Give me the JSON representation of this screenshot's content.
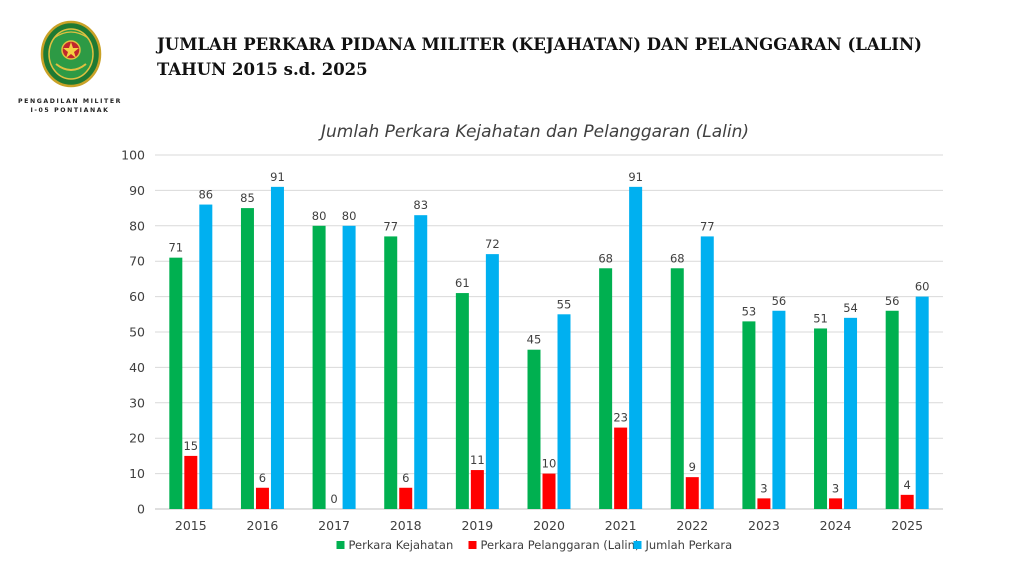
{
  "header": {
    "title_line1": "JUMLAH PERKARA PIDANA MILITER (KEJAHATAN) DAN PELANGGARAN (LALIN)",
    "title_line2": "TAHUN 2015 s.d. 2025",
    "org_line1": "PENGADILAN MILITER",
    "org_line2": "I-05 PONTIANAK"
  },
  "colors": {
    "kejahatan": "#00b050",
    "pelanggaran": "#ff0000",
    "jumlah": "#00b0f0",
    "grid": "#d9d9d9",
    "axis": "#bfbfbf"
  },
  "chart_data": {
    "type": "bar",
    "title": "Jumlah Perkara Kejahatan dan Pelanggaran (Lalin)",
    "categories": [
      "2015",
      "2016",
      "2017",
      "2018",
      "2019",
      "2020",
      "2021",
      "2022",
      "2023",
      "2024",
      "2025"
    ],
    "series": [
      {
        "name": "Perkara Kejahatan",
        "values": [
          71,
          85,
          80,
          77,
          61,
          45,
          68,
          68,
          53,
          51,
          56
        ]
      },
      {
        "name": "Perkara Pelanggaran (Lalin)",
        "values": [
          15,
          6,
          0,
          6,
          11,
          10,
          23,
          9,
          3,
          3,
          4
        ]
      },
      {
        "name": "Jumlah Perkara",
        "values": [
          86,
          91,
          80,
          83,
          72,
          55,
          91,
          77,
          56,
          54,
          60
        ]
      }
    ],
    "ylim": [
      0,
      100
    ],
    "yticks": [
      0,
      10,
      20,
      30,
      40,
      50,
      60,
      70,
      80,
      90,
      100
    ],
    "xlabel": "",
    "ylabel": "",
    "grid": true,
    "legend": "bottom"
  }
}
